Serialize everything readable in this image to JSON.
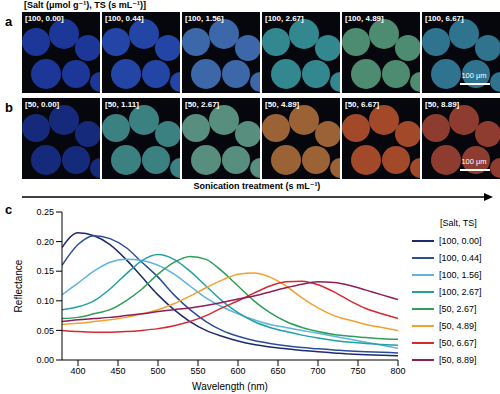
{
  "chart_data": {
    "type": "line",
    "panel_label": "c",
    "x_label": "Wavelength (nm)",
    "y_label": "Reflectance",
    "legend": "right",
    "legend_title": "[Salt, TS]",
    "xlim": [
      380,
      800
    ],
    "xticks": [
      400,
      450,
      500,
      550,
      600,
      650,
      700,
      750,
      800
    ],
    "ylim": [
      0,
      0.25
    ],
    "yticks": [
      {
        "value": 0,
        "label": "0.00"
      },
      0.05,
      {
        "value": 0.1,
        "label": "0.10"
      },
      0.15,
      {
        "value": 0.2,
        "label": "0.20"
      },
      0.25
    ],
    "grid": false,
    "x": [
      380,
      400,
      420,
      440,
      460,
      480,
      500,
      520,
      540,
      560,
      580,
      600,
      620,
      640,
      660,
      680,
      700,
      720,
      740,
      760,
      780,
      800
    ],
    "series": [
      {
        "name": "[100, 0.00]",
        "color": "#1f2a6b",
        "values": [
          0.19,
          0.215,
          0.21,
          0.195,
          0.17,
          0.14,
          0.11,
          0.085,
          0.065,
          0.05,
          0.04,
          0.032,
          0.026,
          0.022,
          0.019,
          0.016,
          0.014,
          0.012,
          0.01,
          0.009,
          0.008,
          0.007
        ]
      },
      {
        "name": "[100, 0.44]",
        "color": "#2b4d9b",
        "values": [
          0.16,
          0.195,
          0.21,
          0.205,
          0.19,
          0.165,
          0.14,
          0.11,
          0.085,
          0.065,
          0.05,
          0.04,
          0.033,
          0.028,
          0.024,
          0.021,
          0.019,
          0.017,
          0.015,
          0.014,
          0.013,
          0.012
        ]
      },
      {
        "name": "[100, 1.56]",
        "color": "#5fb3e0",
        "values": [
          0.11,
          0.13,
          0.15,
          0.165,
          0.17,
          0.168,
          0.16,
          0.145,
          0.125,
          0.105,
          0.09,
          0.078,
          0.068,
          0.06,
          0.055,
          0.05,
          0.045,
          0.04,
          0.035,
          0.03,
          0.025,
          0.02
        ]
      },
      {
        "name": "[100, 2.67]",
        "color": "#23a0a0",
        "values": [
          0.085,
          0.09,
          0.1,
          0.12,
          0.145,
          0.168,
          0.178,
          0.17,
          0.15,
          0.125,
          0.1,
          0.08,
          0.065,
          0.055,
          0.048,
          0.042,
          0.037,
          0.033,
          0.03,
          0.028,
          0.026,
          0.025
        ]
      },
      {
        "name": "[50, 2.67]",
        "color": "#2e9e5a",
        "values": [
          0.07,
          0.072,
          0.078,
          0.085,
          0.1,
          0.12,
          0.145,
          0.165,
          0.175,
          0.17,
          0.15,
          0.125,
          0.1,
          0.08,
          0.065,
          0.055,
          0.048,
          0.043,
          0.04,
          0.038,
          0.036,
          0.035
        ]
      },
      {
        "name": "[50, 4.89]",
        "color": "#f5a030",
        "values": [
          0.06,
          0.062,
          0.065,
          0.068,
          0.072,
          0.078,
          0.085,
          0.095,
          0.108,
          0.122,
          0.135,
          0.145,
          0.147,
          0.14,
          0.125,
          0.105,
          0.088,
          0.075,
          0.067,
          0.06,
          0.055,
          0.05
        ]
      },
      {
        "name": "[50, 6.67]",
        "color": "#d62a30",
        "values": [
          0.05,
          0.048,
          0.047,
          0.047,
          0.048,
          0.05,
          0.053,
          0.058,
          0.065,
          0.075,
          0.088,
          0.1,
          0.113,
          0.125,
          0.132,
          0.133,
          0.127,
          0.115,
          0.1,
          0.087,
          0.078,
          0.07
        ]
      },
      {
        "name": "[50, 8.89]",
        "color": "#8e1e5a",
        "values": [
          0.065,
          0.068,
          0.07,
          0.072,
          0.075,
          0.078,
          0.082,
          0.085,
          0.088,
          0.092,
          0.097,
          0.103,
          0.108,
          0.115,
          0.122,
          0.128,
          0.132,
          0.131,
          0.126,
          0.118,
          0.11,
          0.102
        ]
      }
    ]
  },
  "image_panels": {
    "header": "[Salt (μmol g⁻¹), TS (s mL⁻¹)]",
    "scale_bar": "100 μm",
    "arrow_label": "Sonication treatment (s mL⁻¹)",
    "rows": [
      {
        "label": "a",
        "images": [
          "[100, 0.00]",
          "[100, 0.44]",
          "[100, 1.56]",
          "[100, 2.67]",
          "[100, 4.89]",
          "[100, 6.67]"
        ]
      },
      {
        "label": "b",
        "images": [
          "[50, 0.00]",
          "[50, 1.11]",
          "[50, 2.67]",
          "[50, 4.89]",
          "[50, 6.67]",
          "[50, 8.89]"
        ]
      }
    ]
  }
}
